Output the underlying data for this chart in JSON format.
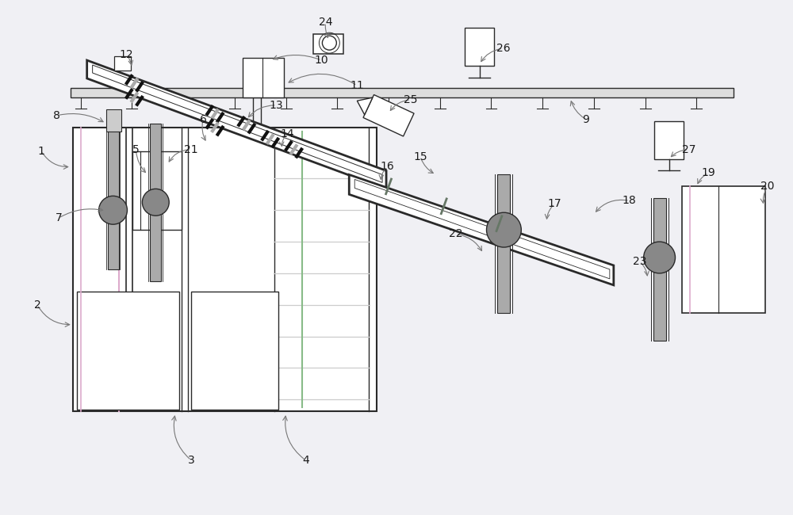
{
  "bg_color": "#f0f0f4",
  "line_color": "#2a2a2a",
  "gray_fill": "#aaaaaa",
  "med_gray": "#cccccc",
  "light_gray": "#dddddd",
  "green_line": "#88bb88",
  "pink_line": "#ddaacc",
  "white": "#ffffff",
  "dark_gray": "#888888",
  "sensor_dark": "#222222",
  "sensor_light": "#cccccc",
  "arrow_color": "#777777"
}
